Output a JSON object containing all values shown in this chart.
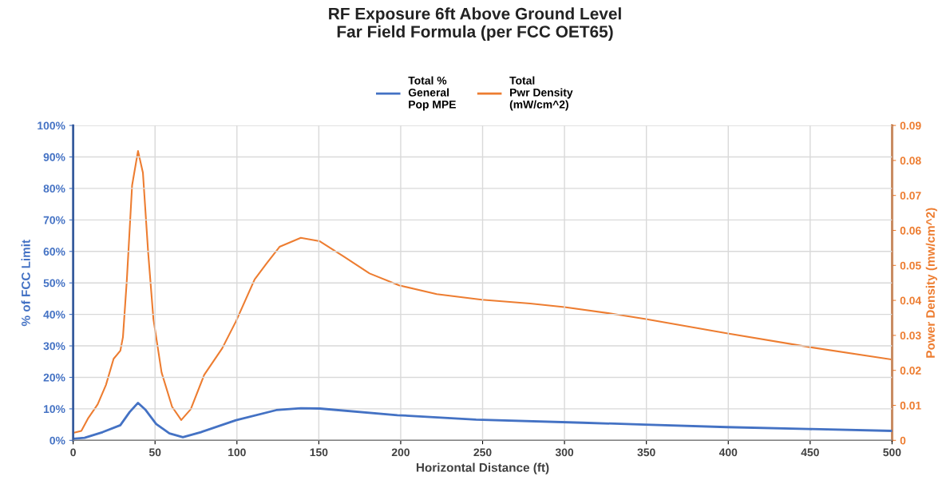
{
  "chart_data": {
    "type": "line",
    "title": "RF Exposure 6ft Above Ground Level\nFar Field Formula (per FCC OET65)",
    "xlabel": "Horizontal Distance (ft)",
    "ylabel": "% of FCC Limit",
    "y2label": "Power Density (mw/cm^2)",
    "xlim": [
      0,
      500
    ],
    "xticks": [
      0,
      50,
      100,
      150,
      200,
      250,
      300,
      350,
      400,
      450,
      500
    ],
    "ylim": [
      0,
      100
    ],
    "yticks": [
      {
        "value": 0,
        "label": "0%"
      },
      {
        "value": 10,
        "label": "10%"
      },
      {
        "value": 20,
        "label": "20%"
      },
      {
        "value": 30,
        "label": "30%"
      },
      {
        "value": 40,
        "label": "40%"
      },
      {
        "value": 50,
        "label": "50%"
      },
      {
        "value": 60,
        "label": "60%"
      },
      {
        "value": 70,
        "label": "70%"
      },
      {
        "value": 80,
        "label": "80%"
      },
      {
        "value": 90,
        "label": "90%"
      },
      {
        "value": 100,
        "label": "100%"
      }
    ],
    "y2lim": [
      0,
      0.09
    ],
    "y2ticks": [
      0,
      0.01,
      0.02,
      0.03,
      0.04,
      0.05,
      0.06,
      0.07,
      0.08,
      0.09
    ],
    "grid": true,
    "legend": "top",
    "marker": "none",
    "line_style": "solid",
    "series": [
      {
        "name": "Total %\nGeneral\nPop MPE",
        "color": "#4472c4",
        "x": [
          0,
          7,
          18,
          28.8,
          34.5,
          39.6,
          44,
          50.7,
          58.8,
          67,
          78,
          99.4,
          124,
          139,
          150.6,
          198,
          246,
          311,
          349,
          399,
          449,
          500
        ],
        "values": [
          0.5,
          0.8,
          2.6,
          4.8,
          9,
          11.9,
          9.8,
          5.2,
          2.2,
          1.0,
          2.6,
          6.4,
          9.6,
          10.2,
          10.1,
          8.0,
          6.6,
          5.6,
          5.0,
          4.2,
          3.6,
          3.0
        ]
      },
      {
        "name": "Total\nPwr Density\n(mW/cm^2)",
        "color": "#ed7d31",
        "axis": "y2",
        "x": [
          0,
          5,
          9,
          15,
          20,
          24.7,
          28.8,
          30.4,
          32.8,
          36,
          39.6,
          42.6,
          45.8,
          49,
          54,
          60.4,
          66,
          71.8,
          80,
          91,
          99.4,
          110.8,
          118,
          126,
          139,
          150.6,
          165,
          181,
          199,
          222,
          249.5,
          279,
          300,
          329,
          349,
          399,
          449,
          500
        ],
        "values": [
          0.0021,
          0.0027,
          0.0062,
          0.0103,
          0.0158,
          0.0233,
          0.0256,
          0.0295,
          0.046,
          0.0729,
          0.0827,
          0.0765,
          0.0537,
          0.0347,
          0.0194,
          0.0096,
          0.0058,
          0.0089,
          0.0187,
          0.0263,
          0.034,
          0.046,
          0.0505,
          0.0553,
          0.0579,
          0.0569,
          0.0526,
          0.0477,
          0.0443,
          0.0418,
          0.0402,
          0.0391,
          0.0381,
          0.0362,
          0.0347,
          0.0306,
          0.0267,
          0.0231
        ]
      }
    ]
  }
}
